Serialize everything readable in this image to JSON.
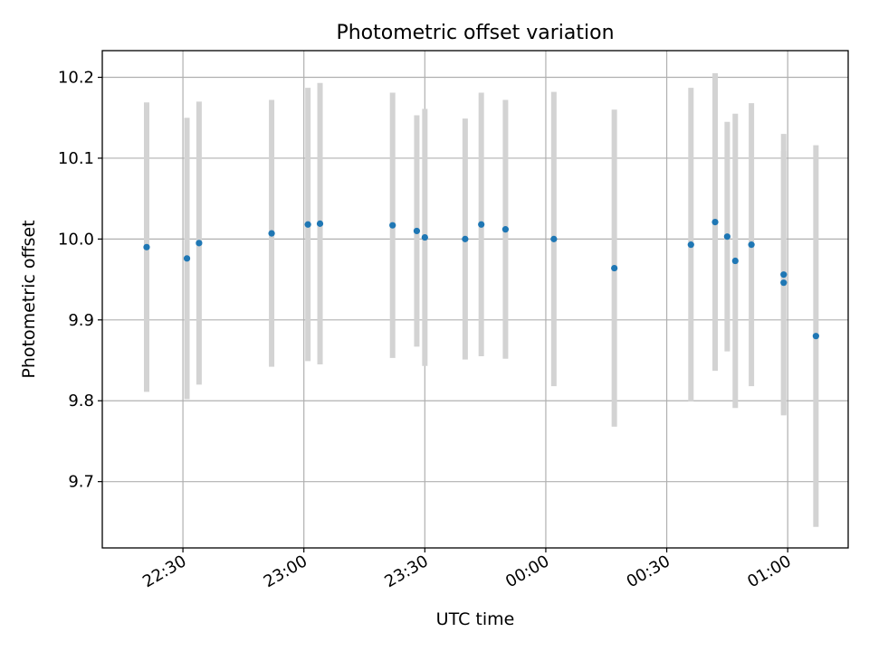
{
  "chart_data": {
    "type": "scatter",
    "title": "Photometric offset variation",
    "xlabel": "UTC time",
    "ylabel": "Photometric offset",
    "grid": true,
    "colors": {
      "point": "#1f77b4",
      "errorbar": "#d3d3d3"
    },
    "x_ticks": [
      "22:30",
      "23:00",
      "23:30",
      "00:00",
      "00:30",
      "01:00"
    ],
    "y_ticks": [
      "9.7",
      "9.8",
      "9.9",
      "10.0",
      "10.1",
      "10.2"
    ],
    "xlim": [
      "22:10",
      "01:15"
    ],
    "ylim": [
      9.618,
      10.233
    ],
    "series": [
      {
        "x": [
          "22:21",
          "22:31",
          "22:34",
          "22:52",
          "23:01",
          "23:04",
          "23:22",
          "23:28",
          "23:30",
          "23:40",
          "23:44",
          "23:50",
          "00:02",
          "00:17",
          "00:36",
          "00:42",
          "00:45",
          "00:47",
          "00:51",
          "00:59",
          "00:59",
          "01:07"
        ],
        "y": [
          9.99,
          9.976,
          9.995,
          10.007,
          10.018,
          10.019,
          10.017,
          10.01,
          10.002,
          10.0,
          10.018,
          10.012,
          10.0,
          9.964,
          9.993,
          10.021,
          10.003,
          9.973,
          9.993,
          9.956,
          9.946,
          9.88
        ],
        "error": [
          0.179,
          0.174,
          0.175,
          0.165,
          0.169,
          0.174,
          0.164,
          0.143,
          0.159,
          0.149,
          0.163,
          0.16,
          0.182,
          0.196,
          0.194,
          0.184,
          0.142,
          0.182,
          0.175,
          0.174,
          0.163,
          0.236
        ]
      }
    ]
  }
}
